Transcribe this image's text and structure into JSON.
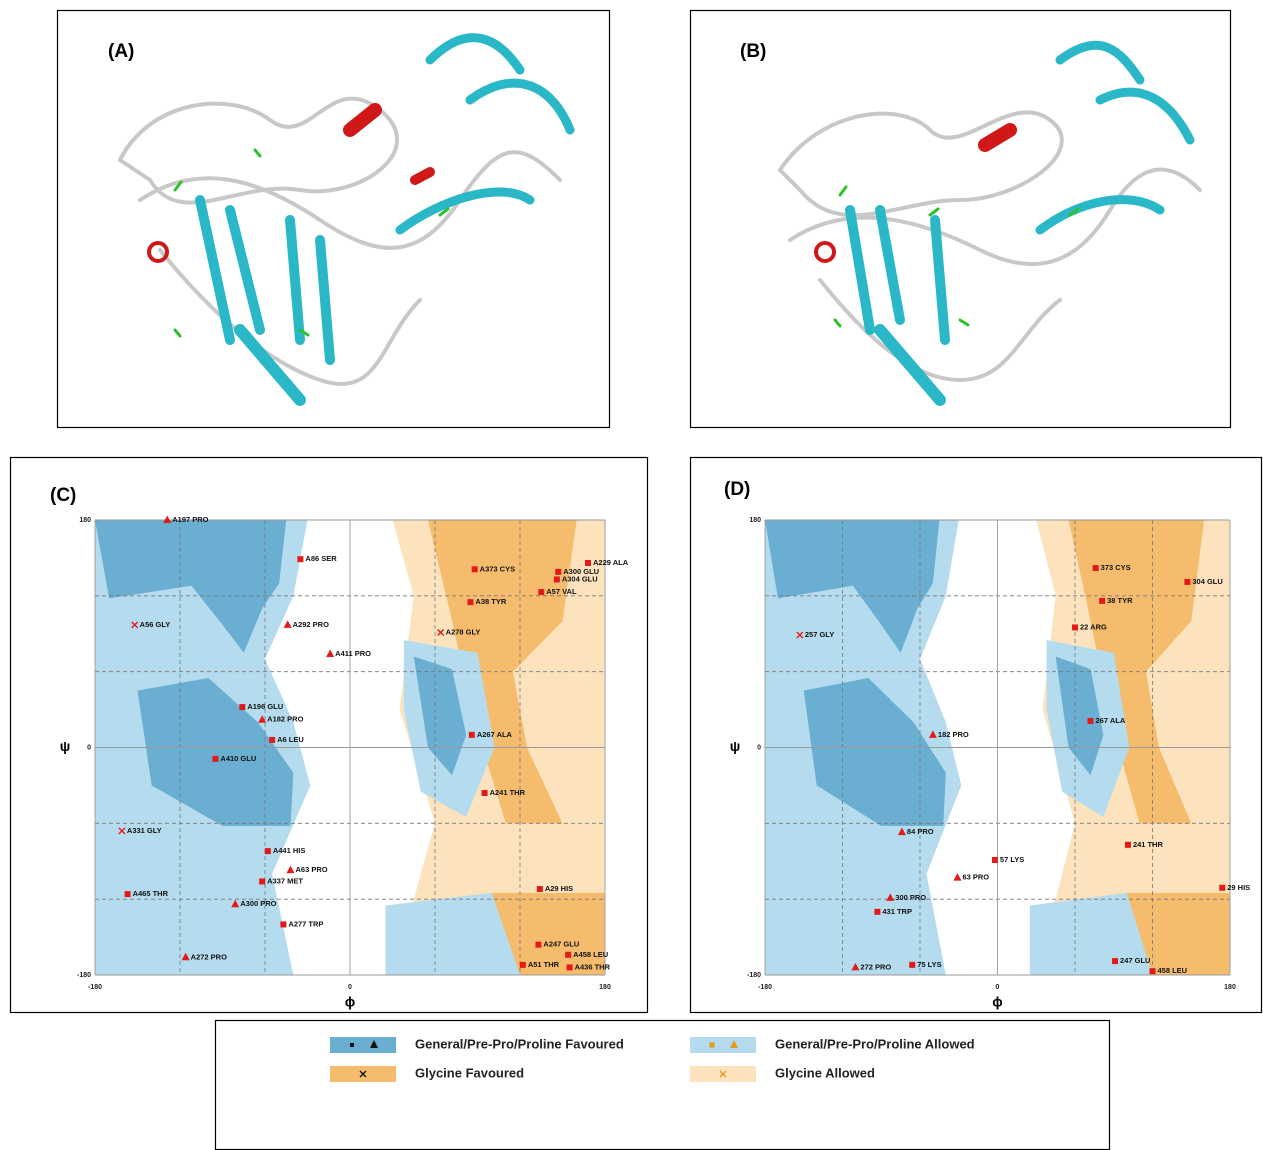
{
  "structures": [
    {
      "label": "(A)"
    },
    {
      "label": "(B)"
    }
  ],
  "plots": [
    {
      "label": "(C)",
      "x_axis_label": "ϕ",
      "y_axis_label": "ψ",
      "xlim": [
        -180,
        180
      ],
      "ylim": [
        -180,
        180
      ],
      "xticks": [
        -180,
        0,
        180
      ],
      "yticks": [
        -180,
        0,
        180
      ],
      "guide_lines": [
        -120,
        -60,
        60,
        120
      ],
      "points": [
        {
          "label": "A197 PRO",
          "phi": -129,
          "psi": 180,
          "marker": "triangle"
        },
        {
          "label": "A86 SER",
          "phi": -35,
          "psi": 149,
          "marker": "square"
        },
        {
          "label": "A292 PRO",
          "phi": -44,
          "psi": 97,
          "marker": "triangle"
        },
        {
          "label": "A411 PRO",
          "phi": -14,
          "psi": 74,
          "marker": "triangle"
        },
        {
          "label": "A56 GLY",
          "phi": -152,
          "psi": 97,
          "marker": "cross"
        },
        {
          "label": "A196 GLU",
          "phi": -76,
          "psi": 32,
          "marker": "square"
        },
        {
          "label": "A182 PRO",
          "phi": -62,
          "psi": 22,
          "marker": "triangle"
        },
        {
          "label": "A6 LEU",
          "phi": -55,
          "psi": 6,
          "marker": "square"
        },
        {
          "label": "A410 GLU",
          "phi": -95,
          "psi": -9,
          "marker": "square"
        },
        {
          "label": "A331 GLY",
          "phi": -161,
          "psi": -66,
          "marker": "cross"
        },
        {
          "label": "A441 HIS",
          "phi": -58,
          "psi": -82,
          "marker": "square"
        },
        {
          "label": "A63 PRO",
          "phi": -42,
          "psi": -97,
          "marker": "triangle"
        },
        {
          "label": "A337 MET",
          "phi": -62,
          "psi": -106,
          "marker": "square"
        },
        {
          "label": "A465 THR",
          "phi": -157,
          "psi": -116,
          "marker": "square"
        },
        {
          "label": "A300 PRO",
          "phi": -81,
          "psi": -124,
          "marker": "triangle"
        },
        {
          "label": "A277 TRP",
          "phi": -47,
          "psi": -140,
          "marker": "square"
        },
        {
          "label": "A272 PRO",
          "phi": -116,
          "psi": -166,
          "marker": "triangle"
        },
        {
          "label": "A373 CYS",
          "phi": 88,
          "psi": 141,
          "marker": "square"
        },
        {
          "label": "A229 ALA",
          "phi": 168,
          "psi": 146,
          "marker": "square"
        },
        {
          "label": "A300 GLU",
          "phi": 147,
          "psi": 139,
          "marker": "square"
        },
        {
          "label": "A304 GLU",
          "phi": 146,
          "psi": 133,
          "marker": "square"
        },
        {
          "label": "A57 VAL",
          "phi": 135,
          "psi": 123,
          "marker": "square"
        },
        {
          "label": "A38 TYR",
          "phi": 85,
          "psi": 115,
          "marker": "square"
        },
        {
          "label": "A278 GLY",
          "phi": 64,
          "psi": 91,
          "marker": "cross"
        },
        {
          "label": "A267 ALA",
          "phi": 86,
          "psi": 10,
          "marker": "square"
        },
        {
          "label": "A241 THR",
          "phi": 95,
          "psi": -36,
          "marker": "square"
        },
        {
          "label": "A29 HIS",
          "phi": 134,
          "psi": -112,
          "marker": "square"
        },
        {
          "label": "A247 GLU",
          "phi": 133,
          "psi": -156,
          "marker": "square"
        },
        {
          "label": "A458 LEU",
          "phi": 154,
          "psi": -164,
          "marker": "square"
        },
        {
          "label": "A51 THR",
          "phi": 122,
          "psi": -172,
          "marker": "square"
        },
        {
          "label": "A436 THR",
          "phi": 155,
          "psi": -174,
          "marker": "square"
        }
      ]
    },
    {
      "label": "(D)",
      "x_axis_label": "ϕ",
      "y_axis_label": "ψ",
      "xlim": [
        -180,
        180
      ],
      "ylim": [
        -180,
        180
      ],
      "xticks": [
        -180,
        0,
        180
      ],
      "yticks": [
        -180,
        0,
        180
      ],
      "guide_lines": [
        -120,
        -60,
        60,
        120
      ],
      "points": [
        {
          "label": "257 GLY",
          "phi": -153,
          "psi": 89,
          "marker": "cross"
        },
        {
          "label": "373 CYS",
          "phi": 76,
          "psi": 142,
          "marker": "square"
        },
        {
          "label": "304 GLU",
          "phi": 147,
          "psi": 131,
          "marker": "square"
        },
        {
          "label": "38 TYR",
          "phi": 81,
          "psi": 116,
          "marker": "square"
        },
        {
          "label": "22 ARG",
          "phi": 60,
          "psi": 95,
          "marker": "square"
        },
        {
          "label": "267 ALA",
          "phi": 72,
          "psi": 21,
          "marker": "square"
        },
        {
          "label": "182 PRO",
          "phi": -50,
          "psi": 10,
          "marker": "triangle"
        },
        {
          "label": "84 PRO",
          "phi": -74,
          "psi": -67,
          "marker": "triangle"
        },
        {
          "label": "57 LYS",
          "phi": -2,
          "psi": -89,
          "marker": "square"
        },
        {
          "label": "241 THR",
          "phi": 101,
          "psi": -77,
          "marker": "square"
        },
        {
          "label": "63 PRO",
          "phi": -31,
          "psi": -103,
          "marker": "triangle"
        },
        {
          "label": "300 PRO",
          "phi": -83,
          "psi": -119,
          "marker": "triangle"
        },
        {
          "label": "29 HIS",
          "phi": 174,
          "psi": -111,
          "marker": "square"
        },
        {
          "label": "431 TRP",
          "phi": -93,
          "psi": -130,
          "marker": "square"
        },
        {
          "label": "272 PRO",
          "phi": -110,
          "psi": -174,
          "marker": "triangle"
        },
        {
          "label": "75 LYS",
          "phi": -66,
          "psi": -172,
          "marker": "square"
        },
        {
          "label": "247 GLU",
          "phi": 91,
          "psi": -169,
          "marker": "square"
        },
        {
          "label": "458 LEU",
          "phi": 120,
          "psi": -177,
          "marker": "square"
        }
      ]
    }
  ],
  "legend": [
    {
      "text": "General/Pre-Pro/Proline Favoured",
      "color": "#6aaed2"
    },
    {
      "text": "General/Pre-Pro/Proline Allowed",
      "color": "#b5dcee"
    },
    {
      "text": "Glycine Favoured",
      "color": "#f5bc6e"
    },
    {
      "text": "Glycine Allowed",
      "color": "#fde3bd"
    }
  ]
}
